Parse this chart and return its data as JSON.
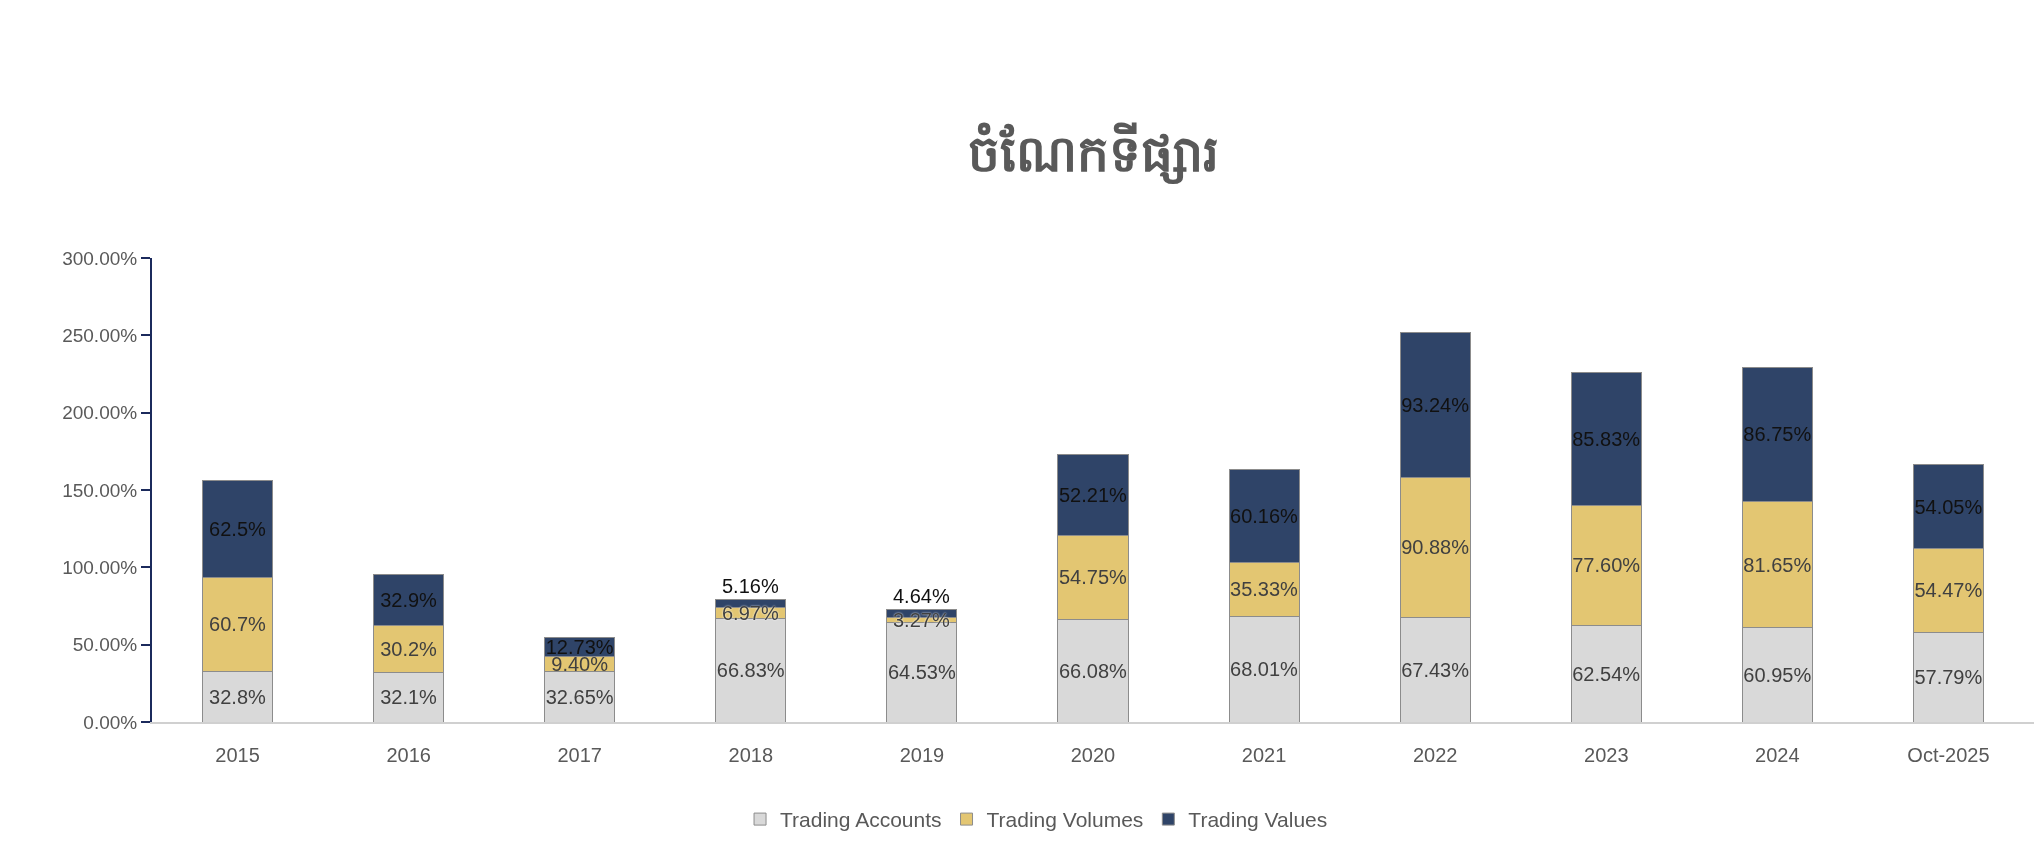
{
  "chart_data": {
    "type": "bar",
    "title": "ចំណែកទីផ្សារ",
    "categories": [
      "2015",
      "2016",
      "2017",
      "2018",
      "2019",
      "2020",
      "2021",
      "2022",
      "2023",
      "2024",
      "Oct-2025"
    ],
    "stacked": true,
    "ylim": [
      0,
      300
    ],
    "yticks": [
      {
        "value": 0,
        "label": "0.00%"
      },
      {
        "value": 50,
        "label": "50.00%"
      },
      {
        "value": 100,
        "label": "100.00%"
      },
      {
        "value": 150,
        "label": "150.00%"
      },
      {
        "value": 200,
        "label": "200.00%"
      },
      {
        "value": 250,
        "label": "250.00%"
      },
      {
        "value": 300,
        "label": "300.00%"
      }
    ],
    "grid": false,
    "legend": "bottom",
    "series": [
      {
        "name": "Trading Accounts",
        "color": "#d9d9d9",
        "values": [
          32.8,
          32.1,
          32.65,
          66.83,
          64.53,
          66.08,
          68.01,
          67.43,
          62.54,
          60.95,
          57.79
        ],
        "value_labels": [
          "32.8%",
          "32.1%",
          "32.65%",
          "66.83%",
          "64.53%",
          "66.08%",
          "68.01%",
          "67.43%",
          "62.54%",
          "60.95%",
          "57.79%"
        ]
      },
      {
        "name": "Trading Volumes",
        "color": "#e3c672",
        "values": [
          60.7,
          30.2,
          9.4,
          6.97,
          3.27,
          54.75,
          35.33,
          90.88,
          77.6,
          81.65,
          54.47
        ],
        "value_labels": [
          "60.7%",
          "30.2%",
          "9.40%",
          "6.97%",
          "3.27%",
          "54.75%",
          "35.33%",
          "90.88%",
          "77.60%",
          "81.65%",
          "54.47%"
        ]
      },
      {
        "name": "Trading Values",
        "color": "#2f4468",
        "values": [
          62.5,
          32.9,
          12.73,
          5.16,
          4.64,
          52.21,
          60.16,
          93.24,
          85.83,
          86.75,
          54.05
        ],
        "value_labels": [
          "62.5%",
          "32.9%",
          "12.73%",
          "5.16%",
          "4.64%",
          "52.21%",
          "60.16%",
          "93.24%",
          "85.83%",
          "86.75%",
          "54.05%"
        ]
      }
    ]
  }
}
